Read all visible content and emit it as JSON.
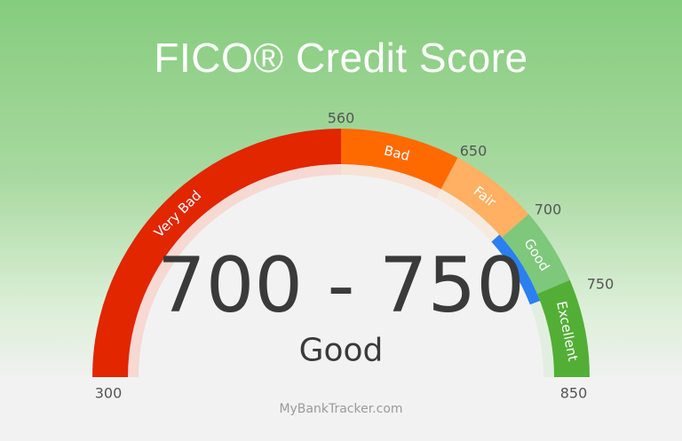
{
  "title": "FICO® Credit Score",
  "range_text": "700 - 750",
  "rating_text": "Good",
  "watermark": "MyBankTracker.com",
  "chart_data": {
    "type": "gauge",
    "title": "FICO® Credit Score",
    "min": 300,
    "max": 850,
    "ticks": [
      "300",
      "560",
      "650",
      "700",
      "750",
      "850"
    ],
    "segments": [
      {
        "label": "Very Bad",
        "from": 300,
        "to": 560,
        "color": "#e12600"
      },
      {
        "label": "Bad",
        "from": 560,
        "to": 650,
        "color": "#ff6a00"
      },
      {
        "label": "Fair",
        "from": 650,
        "to": 700,
        "color": "#ffb062"
      },
      {
        "label": "Good",
        "from": 700,
        "to": 750,
        "color": "#7dc87b"
      },
      {
        "label": "Excellent",
        "from": 750,
        "to": 850,
        "color": "#53ae36"
      }
    ],
    "highlight": {
      "from": 700,
      "to": 750,
      "color": "#2b7ff0"
    }
  }
}
